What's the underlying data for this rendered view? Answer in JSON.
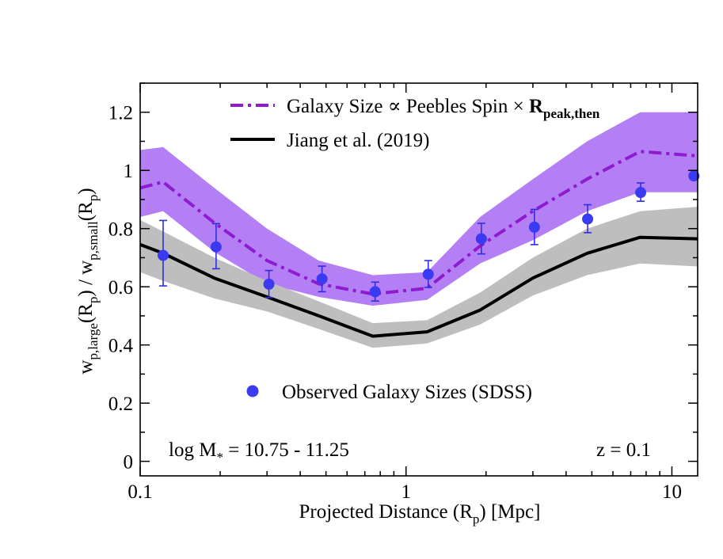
{
  "chart_data": {
    "type": "line",
    "title": "",
    "xscale": "log",
    "xlim": [
      0.1,
      12.5
    ],
    "ylim": [
      -0.05,
      1.3
    ],
    "xlabel": {
      "main": "Projected Distance (R",
      "sub": "p",
      "tail": ") [Mpc]"
    },
    "ylabel": {
      "w1": "w",
      "sub1": "p,large",
      "p1": "(R",
      "sub2": "p",
      "mid": ") / w",
      "sub3": "p,small",
      "p2": "(R",
      "sub4": "p",
      "tail": ")"
    },
    "x_ticks": [
      {
        "value": 0.1,
        "label": "0.1"
      },
      {
        "value": 1,
        "label": "1"
      },
      {
        "value": 10,
        "label": "10"
      }
    ],
    "y_ticks": [
      {
        "value": 0,
        "label": "0"
      },
      {
        "value": 0.2,
        "label": "0.2"
      },
      {
        "value": 0.4,
        "label": "0.4"
      },
      {
        "value": 0.6,
        "label": "0.6"
      },
      {
        "value": 0.8,
        "label": "0.8"
      },
      {
        "value": 1.0,
        "label": "1"
      },
      {
        "value": 1.2,
        "label": "1.2"
      }
    ],
    "series": [
      {
        "name": "Galaxy Size ∝ Peebles Spin × R_peak,then",
        "legend": {
          "main": "Galaxy Size ∝ Peebles Spin × ",
          "bold": "R",
          "sub": "peak,then"
        },
        "style": "dash-dot",
        "color": "#8e1bcf",
        "band_color": "#b47ff5",
        "x": [
          0.1,
          0.122,
          0.19,
          0.3,
          0.47,
          0.75,
          1.2,
          1.9,
          3.0,
          4.8,
          7.6,
          12.5
        ],
        "y": [
          0.94,
          0.96,
          0.82,
          0.69,
          0.61,
          0.575,
          0.595,
          0.74,
          0.86,
          0.97,
          1.065,
          1.05
        ],
        "band_low": [
          0.84,
          0.86,
          0.72,
          0.61,
          0.565,
          0.535,
          0.555,
          0.68,
          0.76,
          0.86,
          0.925,
          0.925
        ],
        "band_high": [
          1.07,
          1.08,
          0.94,
          0.8,
          0.69,
          0.64,
          0.65,
          0.84,
          0.97,
          1.1,
          1.2,
          1.2
        ]
      },
      {
        "name": "Jiang et al. (2019)",
        "style": "solid",
        "color": "#000000",
        "band_color": "#bebebe",
        "x": [
          0.1,
          0.122,
          0.19,
          0.3,
          0.47,
          0.75,
          1.2,
          1.9,
          3.0,
          4.8,
          7.6,
          12.5
        ],
        "y": [
          0.745,
          0.715,
          0.63,
          0.565,
          0.5,
          0.43,
          0.445,
          0.52,
          0.63,
          0.715,
          0.77,
          0.765
        ],
        "band_low": [
          0.65,
          0.62,
          0.56,
          0.515,
          0.455,
          0.39,
          0.405,
          0.47,
          0.57,
          0.64,
          0.68,
          0.67
        ],
        "band_high": [
          0.83,
          0.79,
          0.7,
          0.62,
          0.55,
          0.475,
          0.485,
          0.58,
          0.7,
          0.8,
          0.86,
          0.875
        ]
      },
      {
        "name": "Observed Galaxy Sizes (SDSS)",
        "style": "points",
        "color": "#3a3af0",
        "err_color": "#2e2ee0",
        "x": [
          0.122,
          0.193,
          0.305,
          0.483,
          0.765,
          1.212,
          1.92,
          3.04,
          4.82,
          7.63,
          12.1
        ],
        "y": [
          0.708,
          0.737,
          0.609,
          0.627,
          0.583,
          0.643,
          0.765,
          0.805,
          0.833,
          0.924,
          0.981
        ],
        "yerr_low": [
          0.603,
          0.662,
          0.563,
          0.583,
          0.551,
          0.598,
          0.713,
          0.745,
          0.786,
          0.894,
          0.981
        ],
        "yerr_high": [
          0.828,
          0.817,
          0.656,
          0.671,
          0.616,
          0.69,
          0.818,
          0.866,
          0.882,
          0.957,
          0.981
        ]
      }
    ],
    "annotations": [
      {
        "id": "mass",
        "main": "log M",
        "sub": "*",
        "tail": " = 10.75 - 11.25"
      },
      {
        "id": "redshift",
        "text": "z = 0.1"
      }
    ]
  }
}
